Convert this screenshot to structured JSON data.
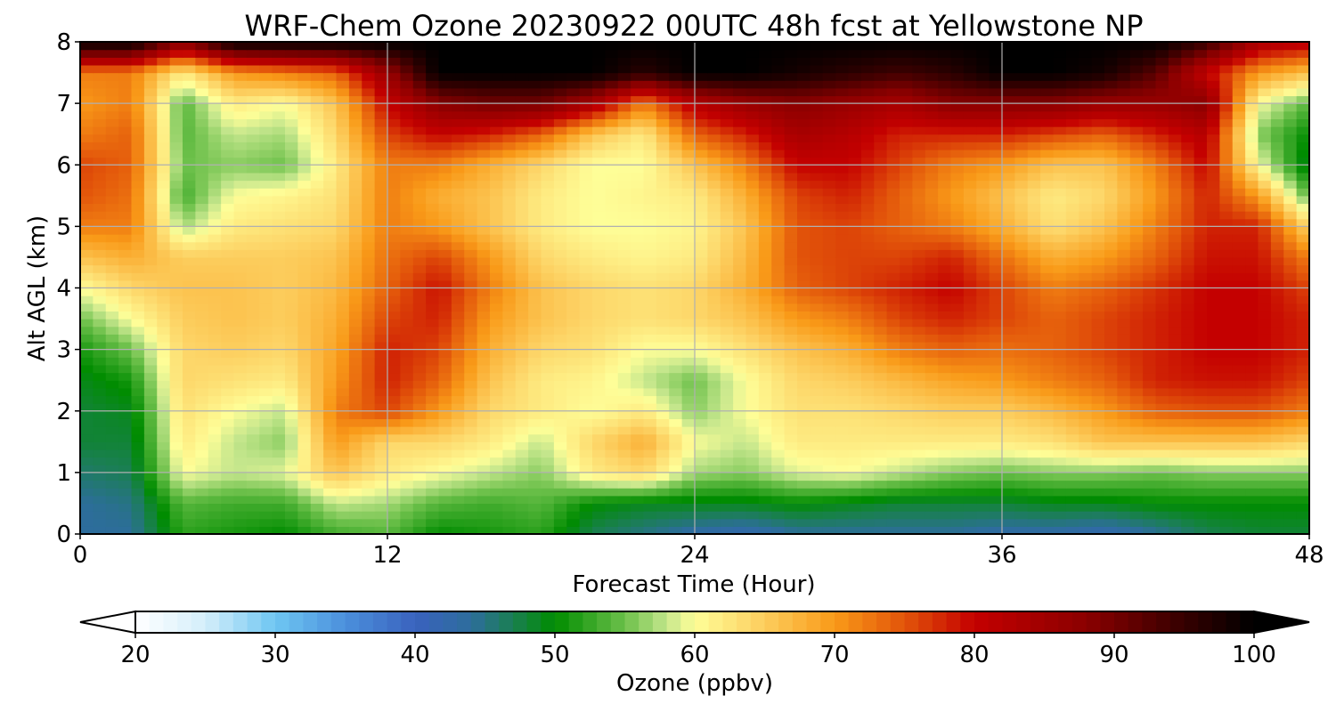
{
  "chart_data": {
    "type": "heatmap",
    "title": "WRF-Chem Ozone  20230922 00UTC 48h fcst at Yellowstone NP",
    "xlabel": "Forecast Time (Hour)",
    "ylabel": "Alt AGL (km)",
    "xlim": [
      0,
      48
    ],
    "ylim": [
      0,
      8
    ],
    "xticks": [
      0,
      12,
      24,
      36,
      48
    ],
    "yticks": [
      0,
      1,
      2,
      3,
      4,
      5,
      6,
      7,
      8
    ],
    "grid": true,
    "x": [
      0,
      2,
      4,
      6,
      8,
      10,
      12,
      14,
      16,
      18,
      20,
      22,
      24,
      26,
      28,
      30,
      32,
      34,
      36,
      38,
      40,
      42,
      44,
      46,
      48
    ],
    "y": [
      0,
      0.5,
      1,
      1.5,
      2,
      2.5,
      3,
      3.5,
      4,
      4.5,
      5,
      5.5,
      6,
      6.5,
      7,
      7.5,
      8
    ],
    "z": [
      [
        44,
        44,
        52,
        51,
        50,
        53,
        54,
        50,
        51,
        52,
        47,
        45,
        43,
        42,
        44,
        44,
        44,
        44,
        43,
        43,
        42,
        44,
        47,
        48,
        48
      ],
      [
        44,
        45,
        54,
        53,
        53,
        58,
        57,
        54,
        53,
        54,
        50,
        49,
        49,
        49,
        50,
        49,
        48,
        48,
        48,
        49,
        49,
        50,
        50,
        50,
        50
      ],
      [
        46,
        47,
        60,
        58,
        59,
        66,
        62,
        60,
        58,
        56,
        62,
        64,
        57,
        56,
        59,
        60,
        58,
        56,
        55,
        56,
        56,
        55,
        56,
        56,
        56
      ],
      [
        48,
        48,
        62,
        58,
        56,
        70,
        64,
        64,
        62,
        58,
        64,
        68,
        60,
        58,
        62,
        62,
        62,
        62,
        62,
        63,
        66,
        66,
        66,
        66,
        64
      ],
      [
        48,
        49,
        63,
        60,
        58,
        72,
        76,
        70,
        64,
        62,
        60,
        62,
        56,
        60,
        63,
        63,
        64,
        65,
        65,
        67,
        70,
        74,
        75,
        75,
        72
      ],
      [
        49,
        51,
        64,
        63,
        62,
        70,
        78,
        74,
        66,
        62,
        61,
        58,
        55,
        60,
        64,
        65,
        67,
        69,
        70,
        72,
        74,
        78,
        79,
        79,
        76
      ],
      [
        51,
        55,
        64,
        65,
        64,
        69,
        78,
        76,
        68,
        64,
        63,
        60,
        60,
        63,
        66,
        68,
        72,
        74,
        73,
        74,
        76,
        78,
        80,
        80,
        78
      ],
      [
        55,
        60,
        65,
        66,
        65,
        68,
        76,
        78,
        70,
        66,
        64,
        63,
        64,
        66,
        70,
        72,
        76,
        78,
        76,
        74,
        76,
        78,
        80,
        80,
        78
      ],
      [
        60,
        64,
        66,
        66,
        65,
        67,
        74,
        79,
        72,
        66,
        64,
        63,
        64,
        68,
        74,
        76,
        78,
        80,
        76,
        72,
        74,
        77,
        80,
        80,
        76
      ],
      [
        66,
        68,
        65,
        65,
        65,
        66,
        73,
        76,
        70,
        64,
        62,
        61,
        62,
        67,
        75,
        76,
        76,
        78,
        73,
        68,
        70,
        74,
        79,
        79,
        72
      ],
      [
        72,
        72,
        57,
        62,
        63,
        64,
        72,
        70,
        66,
        62,
        60,
        60,
        61,
        66,
        75,
        76,
        74,
        72,
        68,
        63,
        66,
        72,
        78,
        78,
        64
      ],
      [
        75,
        73,
        53,
        60,
        61,
        63,
        72,
        68,
        66,
        62,
        60,
        61,
        62,
        68,
        76,
        78,
        74,
        70,
        66,
        62,
        64,
        70,
        78,
        70,
        54
      ],
      [
        76,
        74,
        55,
        56,
        55,
        62,
        72,
        72,
        68,
        64,
        60,
        60,
        66,
        72,
        80,
        80,
        76,
        72,
        70,
        66,
        66,
        72,
        80,
        60,
        48
      ],
      [
        72,
        74,
        54,
        58,
        57,
        64,
        76,
        80,
        78,
        74,
        66,
        62,
        74,
        78,
        84,
        82,
        78,
        78,
        78,
        76,
        74,
        78,
        82,
        56,
        50
      ],
      [
        70,
        72,
        54,
        62,
        60,
        66,
        80,
        88,
        90,
        90,
        84,
        72,
        82,
        86,
        88,
        86,
        84,
        88,
        88,
        88,
        86,
        86,
        88,
        60,
        54
      ],
      [
        72,
        72,
        62,
        70,
        72,
        74,
        86,
        100,
        100,
        100,
        100,
        96,
        100,
        100,
        98,
        96,
        94,
        96,
        100,
        100,
        98,
        92,
        80,
        70,
        66
      ],
      [
        100,
        100,
        88,
        100,
        100,
        100,
        100,
        100,
        100,
        100,
        100,
        100,
        100,
        100,
        100,
        100,
        100,
        100,
        100,
        100,
        100,
        100,
        95,
        84,
        82
      ]
    ],
    "colorbar": {
      "label": "Ozone  (ppbv)",
      "min": 20,
      "max": 100,
      "ticks": [
        20,
        30,
        40,
        50,
        60,
        70,
        80,
        90,
        100
      ],
      "extend": "both",
      "levels": 80,
      "colors": [
        [
          20,
          "#ffffff"
        ],
        [
          25,
          "#d4eefa"
        ],
        [
          30,
          "#6ec6f2"
        ],
        [
          35,
          "#4b8fdc"
        ],
        [
          40,
          "#3a62be"
        ],
        [
          44,
          "#2d6d9c"
        ],
        [
          47,
          "#1a7f52"
        ],
        [
          50,
          "#008c00"
        ],
        [
          55,
          "#6cc04a"
        ],
        [
          58,
          "#c4e68c"
        ],
        [
          60,
          "#fefe98"
        ],
        [
          64,
          "#fdd76a"
        ],
        [
          70,
          "#f99a18"
        ],
        [
          75,
          "#e2540a"
        ],
        [
          80,
          "#c40000"
        ],
        [
          88,
          "#8a0000"
        ],
        [
          95,
          "#350000"
        ],
        [
          100,
          "#000000"
        ]
      ]
    }
  }
}
